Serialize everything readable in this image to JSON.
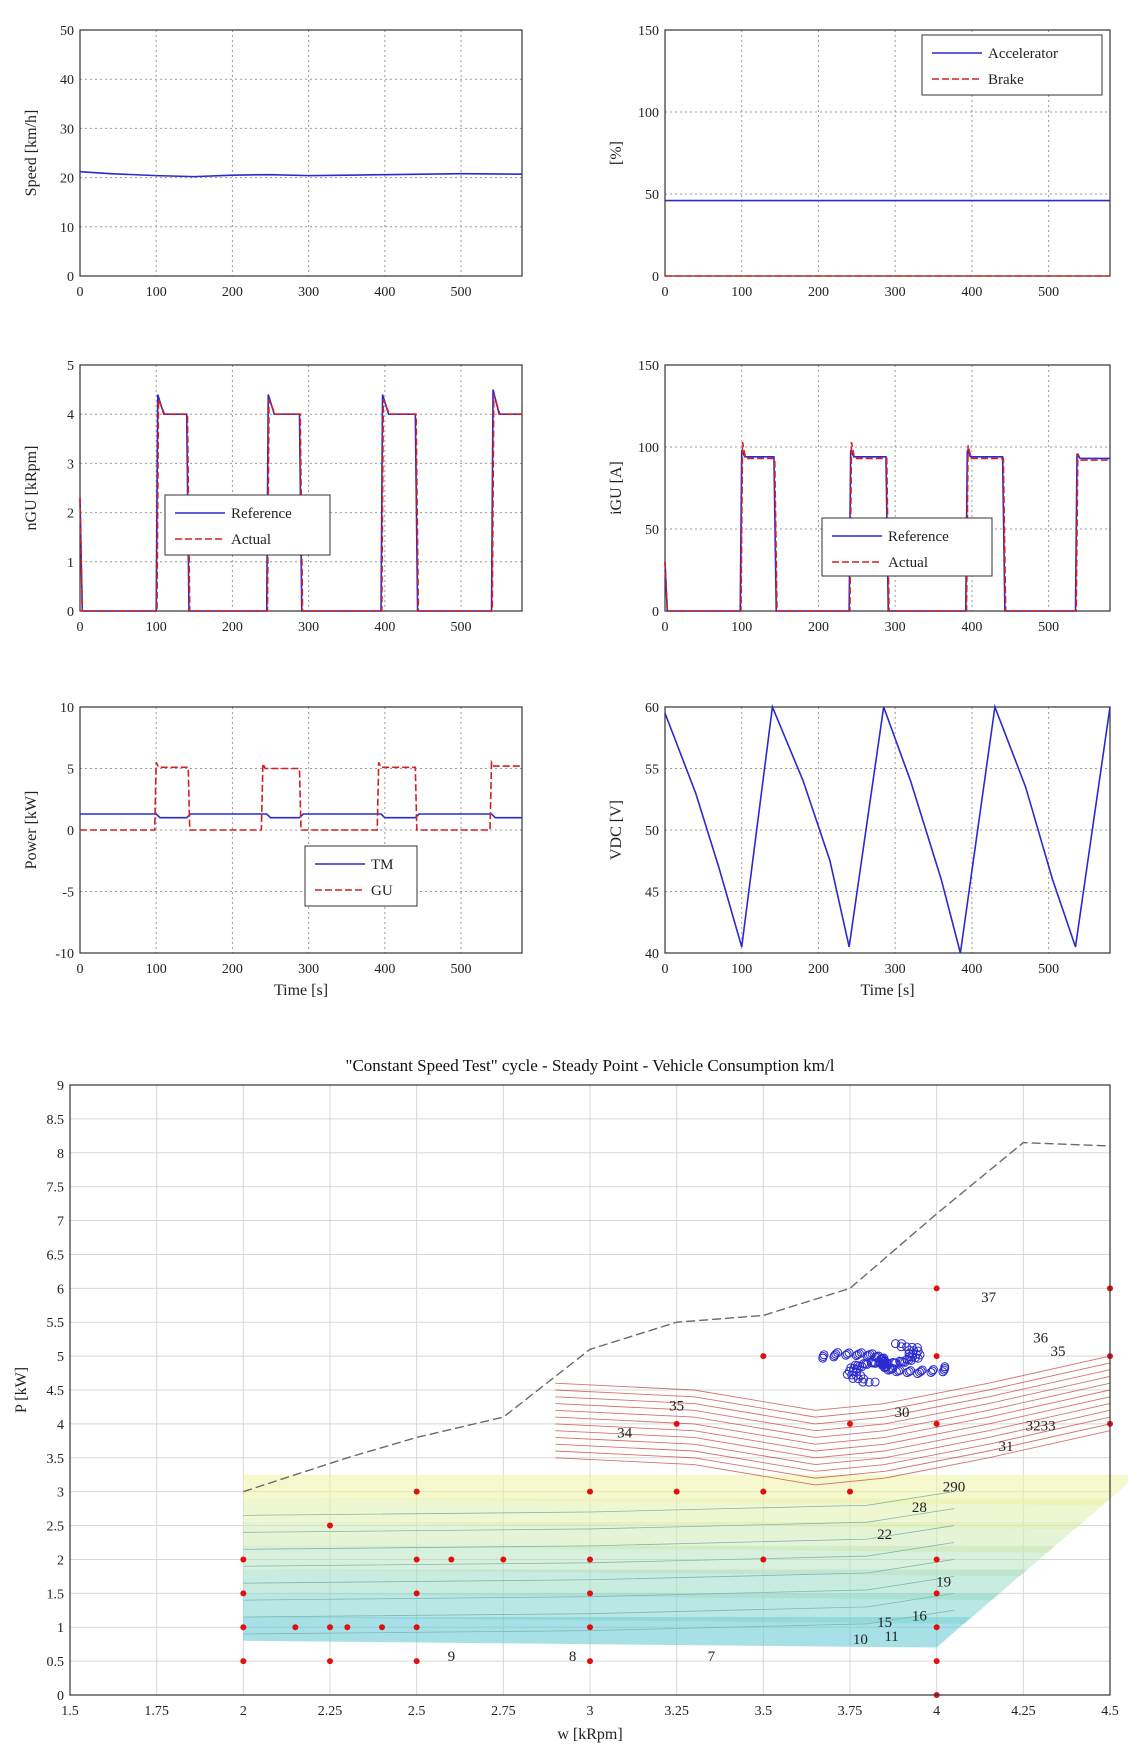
{
  "colors": {
    "blue": "#2a2acf",
    "red": "#d42020",
    "grey": "#6a6a6a",
    "reddot": "#e01010"
  },
  "chart_data": [
    {
      "type": "line",
      "id": "speed",
      "xlabel": "",
      "ylabel": "Speed [km/h]",
      "xlim": [
        0,
        580
      ],
      "ylim": [
        0,
        50
      ],
      "xticks": [
        "0",
        "100",
        "200",
        "300",
        "400",
        "500"
      ],
      "yticks": [
        "0",
        "10",
        "20",
        "30",
        "40",
        "50"
      ],
      "series": [
        {
          "color": "blue",
          "x": [
            0,
            40,
            100,
            150,
            200,
            250,
            300,
            350,
            400,
            450,
            500,
            580
          ],
          "y": [
            21.2,
            20.8,
            20.4,
            20.2,
            20.5,
            20.6,
            20.4,
            20.5,
            20.6,
            20.7,
            20.8,
            20.7
          ]
        }
      ]
    },
    {
      "type": "line",
      "id": "pedal",
      "xlabel": "",
      "ylabel": "[%]",
      "xlim": [
        0,
        580
      ],
      "ylim": [
        0,
        150
      ],
      "xticks": [
        "0",
        "100",
        "200",
        "300",
        "400",
        "500"
      ],
      "yticks": [
        "0",
        "50",
        "100",
        "150"
      ],
      "legend": [
        "Accelerator",
        "Brake"
      ],
      "series": [
        {
          "name": "Accelerator",
          "color": "blue",
          "x": [
            0,
            580
          ],
          "y": [
            46,
            46
          ]
        },
        {
          "name": "Brake",
          "color": "red",
          "x": [
            0,
            580
          ],
          "y": [
            0,
            0
          ]
        }
      ]
    },
    {
      "type": "line",
      "id": "ngu",
      "xlabel": "",
      "ylabel": "nGU [kRpm]",
      "xlim": [
        0,
        580
      ],
      "ylim": [
        0,
        5
      ],
      "xticks": [
        "0",
        "100",
        "200",
        "300",
        "400",
        "500"
      ],
      "yticks": [
        "0",
        "1",
        "2",
        "3",
        "4",
        "5"
      ],
      "legend": [
        "Reference",
        "Actual"
      ],
      "series": [
        {
          "name": "Reference",
          "color": "blue",
          "x": [
            0,
            3,
            6,
            100,
            102,
            110,
            140,
            143,
            245,
            247,
            255,
            288,
            291,
            395,
            397,
            405,
            440,
            443,
            540,
            542,
            550,
            580
          ],
          "y": [
            2.3,
            0,
            0,
            0,
            4.4,
            4.0,
            4.0,
            0,
            0,
            4.4,
            4.0,
            4.0,
            0,
            0,
            4.4,
            4.0,
            4.0,
            0,
            0,
            4.5,
            4.0,
            4.0
          ]
        },
        {
          "name": "Actual",
          "color": "red",
          "x": [
            0,
            3,
            6,
            101,
            103,
            111,
            141,
            144,
            246,
            248,
            256,
            289,
            292,
            396,
            398,
            406,
            441,
            444,
            541,
            543,
            551,
            580
          ],
          "y": [
            2.3,
            0,
            0,
            0,
            4.3,
            4.0,
            4.0,
            0,
            0,
            4.3,
            4.0,
            4.0,
            0,
            0,
            4.3,
            4.0,
            4.0,
            0,
            0,
            4.4,
            4.0,
            4.0
          ]
        }
      ]
    },
    {
      "type": "line",
      "id": "igu",
      "xlabel": "",
      "ylabel": "iGU [A]",
      "xlim": [
        0,
        580
      ],
      "ylim": [
        0,
        150
      ],
      "xticks": [
        "0",
        "100",
        "200",
        "300",
        "400",
        "500"
      ],
      "yticks": [
        "0",
        "50",
        "100",
        "150"
      ],
      "legend": [
        "Reference",
        "Actual"
      ],
      "series": [
        {
          "name": "Reference",
          "color": "blue",
          "x": [
            0,
            3,
            6,
            98,
            100,
            104,
            142,
            145,
            240,
            242,
            246,
            288,
            291,
            392,
            394,
            398,
            440,
            443,
            535,
            537,
            541,
            580
          ],
          "y": [
            30,
            0,
            0,
            0,
            98,
            94,
            94,
            0,
            0,
            98,
            94,
            94,
            0,
            0,
            98,
            94,
            94,
            0,
            0,
            95,
            93,
            93
          ]
        },
        {
          "name": "Actual",
          "color": "red",
          "x": [
            0,
            3,
            6,
            99,
            101,
            105,
            143,
            146,
            241,
            243,
            247,
            289,
            292,
            393,
            395,
            399,
            441,
            444,
            536,
            538,
            542,
            580
          ],
          "y": [
            30,
            0,
            0,
            0,
            103,
            93,
            93,
            0,
            0,
            103,
            93,
            93,
            0,
            0,
            101,
            93,
            93,
            0,
            0,
            96,
            92,
            92
          ]
        }
      ]
    },
    {
      "type": "line",
      "id": "power",
      "xlabel": "Time [s]",
      "ylabel": "Power [kW]",
      "xlim": [
        0,
        580
      ],
      "ylim": [
        -10,
        10
      ],
      "xticks": [
        "0",
        "100",
        "200",
        "300",
        "400",
        "500"
      ],
      "yticks": [
        "-10",
        "-5",
        "0",
        "5",
        "10"
      ],
      "legend": [
        "TM",
        "GU"
      ],
      "series": [
        {
          "name": "TM",
          "color": "blue",
          "x": [
            0,
            100,
            105,
            140,
            145,
            245,
            250,
            288,
            293,
            395,
            400,
            440,
            445,
            540,
            545,
            580
          ],
          "y": [
            1.3,
            1.3,
            1.0,
            1.0,
            1.3,
            1.3,
            1.0,
            1.0,
            1.3,
            1.3,
            1.0,
            1.0,
            1.3,
            1.3,
            1.0,
            1.0
          ]
        },
        {
          "name": "GU",
          "color": "red",
          "x": [
            0,
            98,
            100,
            103,
            142,
            144,
            238,
            240,
            243,
            288,
            290,
            390,
            392,
            395,
            440,
            442,
            538,
            540,
            543,
            580
          ],
          "y": [
            0,
            0,
            5.5,
            5.1,
            5.1,
            0,
            0,
            5.4,
            5.0,
            5.0,
            0,
            0,
            5.5,
            5.1,
            5.1,
            0,
            0,
            5.5,
            5.2,
            5.2
          ]
        }
      ]
    },
    {
      "type": "line",
      "id": "vdc",
      "xlabel": "Time [s]",
      "ylabel": "VDC [V]",
      "xlim": [
        0,
        580
      ],
      "ylim": [
        40,
        60
      ],
      "xticks": [
        "0",
        "100",
        "200",
        "300",
        "400",
        "500"
      ],
      "yticks": [
        "40",
        "45",
        "50",
        "55",
        "60"
      ],
      "series": [
        {
          "color": "blue",
          "x": [
            0,
            40,
            70,
            100,
            140,
            180,
            215,
            240,
            285,
            320,
            360,
            385,
            430,
            470,
            505,
            535,
            580
          ],
          "y": [
            59.5,
            53,
            47,
            40.5,
            60,
            54,
            47.5,
            40.5,
            60,
            54,
            46,
            40,
            60,
            53.5,
            46,
            40.5,
            60
          ]
        }
      ]
    },
    {
      "type": "scatter",
      "id": "consumption",
      "title": "\"Constant Speed Test\" cycle - Steady Point - Vehicle Consumption km/l",
      "xlabel": "w [kRpm]",
      "ylabel": "P [kW]",
      "xlim": [
        1.5,
        4.5
      ],
      "ylim": [
        0,
        9
      ],
      "xticks": [
        "1.5",
        "1.75",
        "2",
        "2.25",
        "2.5",
        "2.75",
        "3",
        "3.25",
        "3.5",
        "3.75",
        "4",
        "4.25",
        "4.5"
      ],
      "yticks": [
        "0",
        "0.5",
        "1",
        "1.5",
        "2",
        "2.5",
        "3",
        "3.5",
        "4",
        "4.5",
        "5",
        "5.5",
        "6",
        "6.5",
        "7",
        "7.5",
        "8",
        "8.5",
        "9"
      ],
      "max_power_line": {
        "x": [
          2,
          2.3,
          2.5,
          2.75,
          3,
          3.25,
          3.5,
          3.75,
          4,
          4.25,
          4.5
        ],
        "y": [
          3.0,
          3.5,
          3.8,
          4.1,
          5.1,
          5.5,
          5.6,
          6.0,
          7.1,
          8.15,
          8.1
        ]
      },
      "contour_labels": [
        {
          "x": 2.6,
          "y": 0.5,
          "t": "9"
        },
        {
          "x": 2.95,
          "y": 0.5,
          "t": "8"
        },
        {
          "x": 3.35,
          "y": 0.5,
          "t": "7"
        },
        {
          "x": 3.78,
          "y": 0.75,
          "t": "10"
        },
        {
          "x": 3.87,
          "y": 0.8,
          "t": "11"
        },
        {
          "x": 3.85,
          "y": 1.0,
          "t": "15"
        },
        {
          "x": 3.95,
          "y": 1.1,
          "t": "16"
        },
        {
          "x": 4.02,
          "y": 1.6,
          "t": "19"
        },
        {
          "x": 3.85,
          "y": 2.3,
          "t": "22"
        },
        {
          "x": 3.95,
          "y": 2.7,
          "t": "28"
        },
        {
          "x": 4.05,
          "y": 3.0,
          "t": "290"
        },
        {
          "x": 4.2,
          "y": 3.6,
          "t": "31"
        },
        {
          "x": 4.3,
          "y": 3.9,
          "t": "3233"
        },
        {
          "x": 3.1,
          "y": 3.8,
          "t": "34"
        },
        {
          "x": 3.25,
          "y": 4.2,
          "t": "35"
        },
        {
          "x": 3.9,
          "y": 4.1,
          "t": "30"
        },
        {
          "x": 4.15,
          "y": 5.8,
          "t": "37"
        },
        {
          "x": 4.3,
          "y": 5.2,
          "t": "36"
        },
        {
          "x": 4.35,
          "y": 5.0,
          "t": "35"
        }
      ],
      "grid_points": [
        [
          2,
          0.5
        ],
        [
          2,
          1
        ],
        [
          2,
          1.5
        ],
        [
          2,
          2
        ],
        [
          2.25,
          0.5
        ],
        [
          2.25,
          1
        ],
        [
          2.25,
          2.5
        ],
        [
          2.5,
          0.5
        ],
        [
          2.5,
          1
        ],
        [
          2.5,
          1.5
        ],
        [
          2.5,
          2
        ],
        [
          2.5,
          3
        ],
        [
          3,
          0.5
        ],
        [
          3,
          1
        ],
        [
          3,
          1.5
        ],
        [
          3,
          2
        ],
        [
          3,
          3
        ],
        [
          3.25,
          3
        ],
        [
          3.25,
          4
        ],
        [
          3.5,
          2
        ],
        [
          3.5,
          3
        ],
        [
          3.5,
          5
        ],
        [
          3.75,
          4
        ],
        [
          3.75,
          3
        ],
        [
          4,
          0
        ],
        [
          4,
          0.5
        ],
        [
          4,
          1
        ],
        [
          4,
          1.5
        ],
        [
          4,
          2
        ],
        [
          4,
          4
        ],
        [
          4,
          5
        ],
        [
          4,
          6
        ],
        [
          4.5,
          4
        ],
        [
          4.5,
          5
        ],
        [
          4.5,
          6
        ],
        [
          2.15,
          1
        ],
        [
          2.3,
          1
        ],
        [
          2.4,
          1
        ],
        [
          2.6,
          2
        ],
        [
          2.75,
          2
        ]
      ],
      "operating_points": {
        "x_range": [
          3.6,
          4.05
        ],
        "y_range": [
          4.6,
          5.2
        ],
        "count": 120
      }
    }
  ]
}
